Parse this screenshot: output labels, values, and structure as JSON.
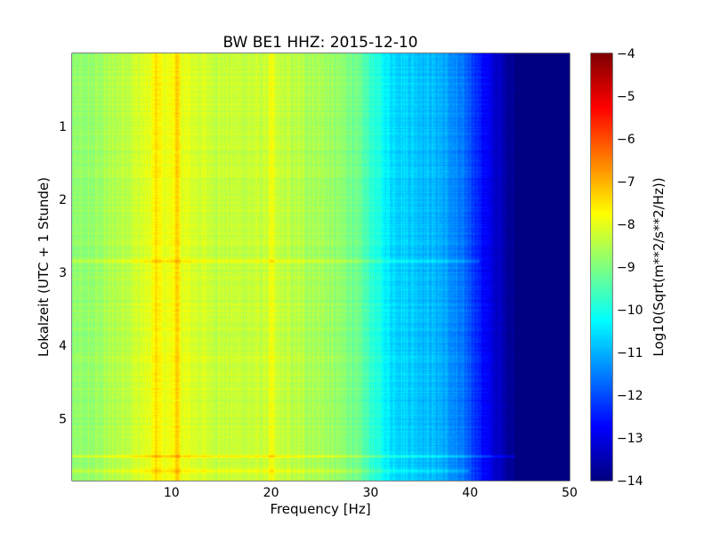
{
  "chart_data": {
    "type": "heatmap",
    "title": "BW BE1 HHZ: 2015-12-10",
    "xlabel": "Frequency [Hz]",
    "ylabel": "Lokalzeit (UTC + 1 Stunde)",
    "xlim": [
      0,
      50
    ],
    "ylim": [
      5.85,
      0
    ],
    "x_ticks": [
      10,
      20,
      30,
      40,
      50
    ],
    "x_tick_labels": [
      "10",
      "20",
      "30",
      "40",
      "50"
    ],
    "y_ticks": [
      1,
      2,
      3,
      4,
      5
    ],
    "y_tick_labels": [
      "1",
      "2",
      "3",
      "4",
      "5"
    ],
    "grid": true,
    "colormap": "jet",
    "colorbar": {
      "label": "Log10(Sqrt(m**2/s**2/Hz))",
      "range": [
        -14,
        -4
      ],
      "ticks": [
        -14,
        -13,
        -12,
        -11,
        -10,
        -9,
        -8,
        -7,
        -6,
        -5,
        -4
      ],
      "tick_labels": [
        "−14",
        "−13",
        "−12",
        "−11",
        "−10",
        "−9",
        "−8",
        "−7",
        "−6",
        "−5",
        "−4"
      ]
    },
    "spectral_profile": {
      "frequency_hz": [
        0,
        2,
        5,
        8,
        10,
        12,
        15,
        20,
        25,
        28,
        30,
        32,
        35,
        37,
        38,
        40,
        41,
        42,
        43,
        44,
        45,
        50
      ],
      "log_psd": [
        -8.9,
        -8.8,
        -8.4,
        -8.0,
        -7.9,
        -8.1,
        -8.3,
        -8.3,
        -8.6,
        -9.0,
        -9.7,
        -10.5,
        -10.8,
        -11.0,
        -11.3,
        -11.9,
        -12.5,
        -13.0,
        -13.4,
        -13.7,
        -14.0,
        -14.0
      ]
    },
    "horizontal_features": [
      {
        "time_h": 2.85,
        "log_psd_offset": 0.6,
        "extends_to_hz": 41
      },
      {
        "time_h": 5.52,
        "log_psd_offset": 0.8,
        "extends_to_hz": 45
      },
      {
        "time_h": 5.72,
        "log_psd_offset": 0.6,
        "extends_to_hz": 40
      }
    ],
    "vertical_features": [
      {
        "frequency_hz": 8.5,
        "log_psd_offset": 0.5
      },
      {
        "frequency_hz": 10.5,
        "log_psd_offset": 0.6
      },
      {
        "frequency_hz": 20,
        "log_psd_offset": 0.4
      }
    ]
  }
}
